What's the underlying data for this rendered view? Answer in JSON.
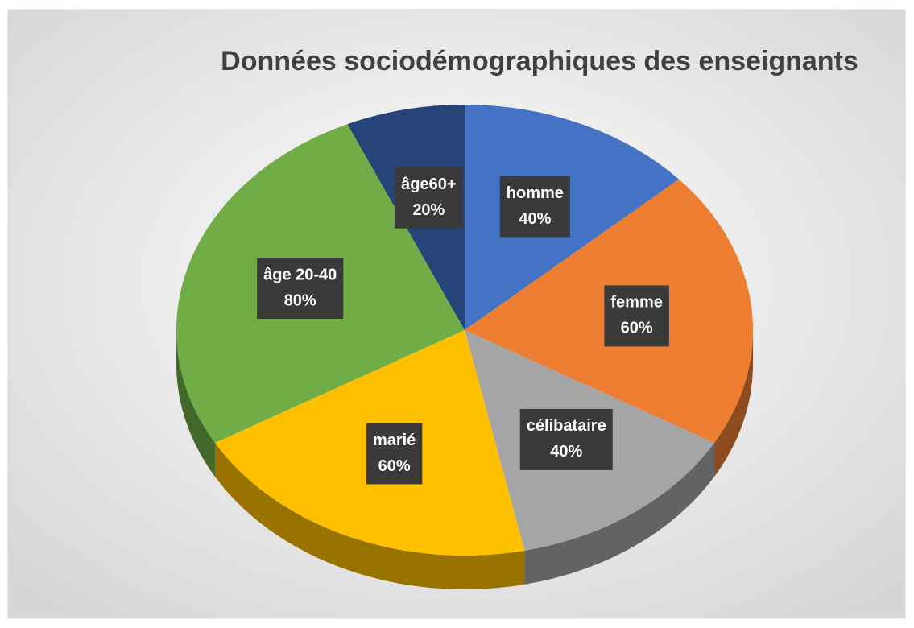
{
  "chart_data": {
    "type": "pie",
    "title": "Données sociodémographiques des enseignants",
    "categories": [
      "homme",
      "femme",
      "célibataire",
      "marié",
      "âge 20-40",
      "âge60+"
    ],
    "values": [
      40,
      60,
      40,
      60,
      80,
      20
    ],
    "value_labels": [
      "40%",
      "60%",
      "40%",
      "60%",
      "80%",
      "20%"
    ],
    "colors": [
      "#4472c4",
      "#ed7d31",
      "#a5a5a5",
      "#ffc000",
      "#70ad47",
      "#264478"
    ]
  }
}
